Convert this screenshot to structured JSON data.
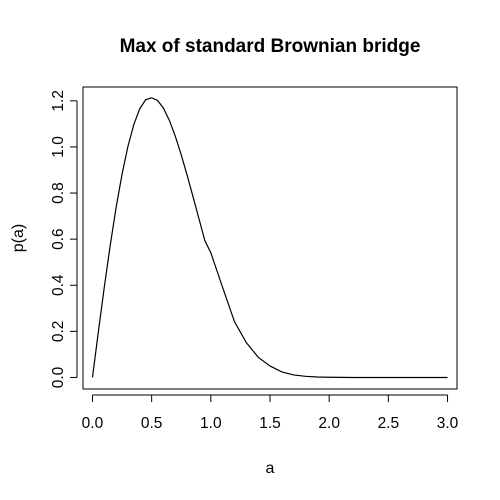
{
  "chart_data": {
    "type": "line",
    "title": "Max of standard Brownian bridge",
    "xlabel": "a",
    "ylabel": "p(a)",
    "xlim": [
      -0.08,
      3.08
    ],
    "ylim": [
      -0.05,
      1.26
    ],
    "xticks": [
      0.0,
      0.5,
      1.0,
      1.5,
      2.0,
      2.5,
      3.0
    ],
    "xtick_labels": [
      "0.0",
      "0.5",
      "1.0",
      "1.5",
      "2.0",
      "2.5",
      "3.0"
    ],
    "yticks": [
      0.0,
      0.2,
      0.4,
      0.6,
      0.8,
      1.0,
      1.2
    ],
    "ytick_labels": [
      "0.0",
      "0.2",
      "0.4",
      "0.6",
      "0.8",
      "1.0",
      "1.2"
    ],
    "grid": false,
    "legend": "none",
    "line_color": "#000000",
    "series": [
      {
        "x": [
          0.0,
          0.05,
          0.1,
          0.15,
          0.2,
          0.25,
          0.3,
          0.35,
          0.4,
          0.45,
          0.5,
          0.55,
          0.6,
          0.65,
          0.7,
          0.75,
          0.8,
          0.85,
          0.9,
          0.95,
          1.0,
          1.1,
          1.2,
          1.3,
          1.4,
          1.5,
          1.6,
          1.7,
          1.8,
          1.9,
          2.0,
          2.2,
          2.4,
          2.6,
          2.8,
          3.0
        ],
        "y": [
          0.0,
          0.199,
          0.392,
          0.573,
          0.738,
          0.882,
          1.003,
          1.098,
          1.166,
          1.205,
          1.213,
          1.202,
          1.168,
          1.115,
          1.046,
          0.966,
          0.877,
          0.783,
          0.688,
          0.593,
          0.541,
          0.39,
          0.242,
          0.151,
          0.088,
          0.05,
          0.024,
          0.011,
          0.005,
          0.002,
          0.001,
          0.0,
          0.0,
          0.0,
          0.0,
          0.0
        ]
      }
    ]
  }
}
